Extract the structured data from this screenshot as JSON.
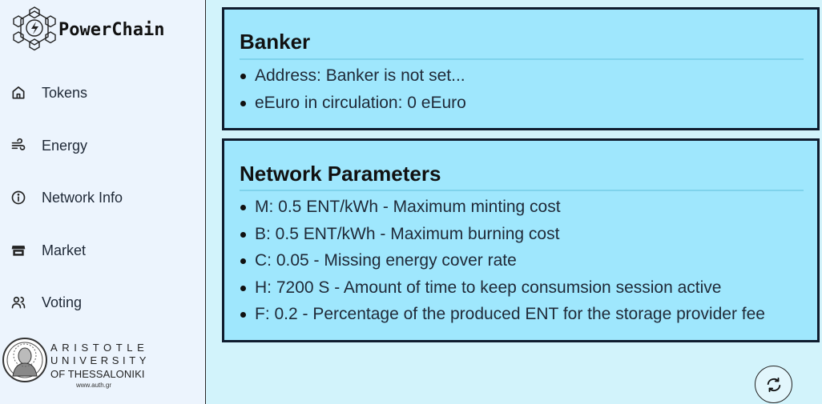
{
  "app": {
    "name": "PowerChain",
    "logo_icon": "hex-network-lightning-icon"
  },
  "sidebar": {
    "items": [
      {
        "label": "Tokens",
        "icon": "home-icon"
      },
      {
        "label": "Energy",
        "icon": "wind-icon"
      },
      {
        "label": "Network Info",
        "icon": "info-icon"
      },
      {
        "label": "Market",
        "icon": "store-icon"
      },
      {
        "label": "Voting",
        "icon": "users-icon"
      }
    ],
    "university": {
      "line1": "ARISTOTLE",
      "line2": "UNIVERSITY",
      "line3": "OF THESSALONIKI",
      "url": "www.auth.gr"
    }
  },
  "banker": {
    "title": "Banker",
    "items": [
      "Address: Banker is not set...",
      "eEuro in circulation: 0 eEuro"
    ]
  },
  "network": {
    "title": "Network Parameters",
    "items": [
      "M: 0.5 ENT/kWh - Maximum minting cost",
      "B: 0.5 ENT/kWh - Maximum burning cost",
      "C: 0.05 - Missing energy cover rate",
      "H: 7200 S - Amount of time to keep consumsion session active",
      "F: 0.2 - Percentage of the produced ENT for the storage provider fee"
    ]
  },
  "actions": {
    "refresh_icon": "refresh-icon"
  },
  "colors": {
    "sidebar_bg": "#ecf4fd",
    "content_bg": "#d2f3fb",
    "card_bg": "#9fe7fd",
    "card_border": "#0f1c2e"
  }
}
